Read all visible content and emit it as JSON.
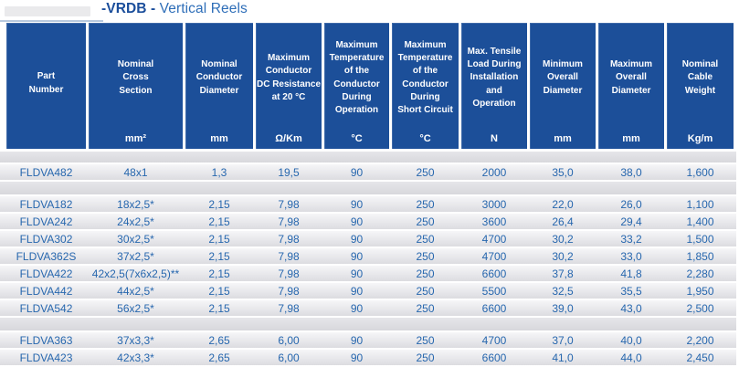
{
  "title": {
    "bold": "-VRDB -",
    "regular": "Vertical Reels"
  },
  "colors": {
    "header_bg": "#1c4f99",
    "header_text": "#ffffff",
    "data_text": "#2767ae",
    "title_bold": "#1b4e9b",
    "title_regular": "#2e6eb8"
  },
  "table": {
    "columns": [
      {
        "key": "part-number",
        "label": "Part\nNumber",
        "unit": ""
      },
      {
        "key": "cross-section",
        "label": "Nominal\nCross\nSection",
        "unit": "mm²"
      },
      {
        "key": "conductor-diameter",
        "label": "Nominal\nConductor\nDiameter",
        "unit": "mm"
      },
      {
        "key": "dc-resistance",
        "label": "Maximum\nConductor\nDC Resistance\nat 20 °C",
        "unit": "Ω/Km"
      },
      {
        "key": "temp-operation",
        "label": "Maximum\nTemperature\nof the\nConductor\nDuring\nOperation",
        "unit": "°C"
      },
      {
        "key": "temp-short-circuit",
        "label": "Maximum\nTemperature\nof the\nConductor\nDuring\nShort Circuit",
        "unit": "°C"
      },
      {
        "key": "tensile-load",
        "label": "Max. Tensile\nLoad During\nInstallation\nand\nOperation",
        "unit": "N"
      },
      {
        "key": "min-diameter",
        "label": "Minimum\nOverall\nDiameter",
        "unit": "mm"
      },
      {
        "key": "max-diameter",
        "label": "Maximum\nOverall\nDiameter",
        "unit": "mm"
      },
      {
        "key": "cable-weight",
        "label": "Nominal\nCable\nWeight",
        "unit": "Kg/m"
      }
    ],
    "rows": [
      {
        "type": "spacer"
      },
      {
        "type": "data",
        "cells": [
          "FLDVA482",
          "48x1",
          "1,3",
          "19,5",
          "90",
          "250",
          "2000",
          "35,0",
          "38,0",
          "1,600"
        ]
      },
      {
        "type": "spacer"
      },
      {
        "type": "data",
        "cells": [
          "FLDVA182",
          "18x2,5*",
          "2,15",
          "7,98",
          "90",
          "250",
          "3000",
          "22,0",
          "26,0",
          "1,100"
        ]
      },
      {
        "type": "data",
        "cells": [
          "FLDVA242",
          "24x2,5*",
          "2,15",
          "7,98",
          "90",
          "250",
          "3600",
          "26,4",
          "29,4",
          "1,400"
        ]
      },
      {
        "type": "data",
        "cells": [
          "FLDVA302",
          "30x2,5*",
          "2,15",
          "7,98",
          "90",
          "250",
          "4700",
          "30,2",
          "33,2",
          "1,500"
        ]
      },
      {
        "type": "data",
        "cells": [
          "FLDVA362S",
          "37x2,5*",
          "2,15",
          "7,98",
          "90",
          "250",
          "4700",
          "30,2",
          "33,0",
          "1,850"
        ]
      },
      {
        "type": "data",
        "cells": [
          "FLDVA422",
          "42x2,5(7x6x2,5)**",
          "2,15",
          "7,98",
          "90",
          "250",
          "6600",
          "37,8",
          "41,8",
          "2,280"
        ]
      },
      {
        "type": "data",
        "cells": [
          "FLDVA442",
          "44x2,5*",
          "2,15",
          "7,98",
          "90",
          "250",
          "5500",
          "32,5",
          "35,5",
          "1,950"
        ]
      },
      {
        "type": "data",
        "cells": [
          "FLDVA542",
          "56x2,5*",
          "2,15",
          "7,98",
          "90",
          "250",
          "6600",
          "39,0",
          "43,0",
          "2,500"
        ]
      },
      {
        "type": "spacer"
      },
      {
        "type": "data",
        "cells": [
          "FLDVA363",
          "37x3,3*",
          "2,65",
          "6,00",
          "90",
          "250",
          "4700",
          "37,0",
          "40,0",
          "2,200"
        ]
      },
      {
        "type": "data",
        "cells": [
          "FLDVA423",
          "42x3,3*",
          "2,65",
          "6,00",
          "90",
          "250",
          "6600",
          "41,0",
          "44,0",
          "2,450"
        ]
      }
    ]
  }
}
